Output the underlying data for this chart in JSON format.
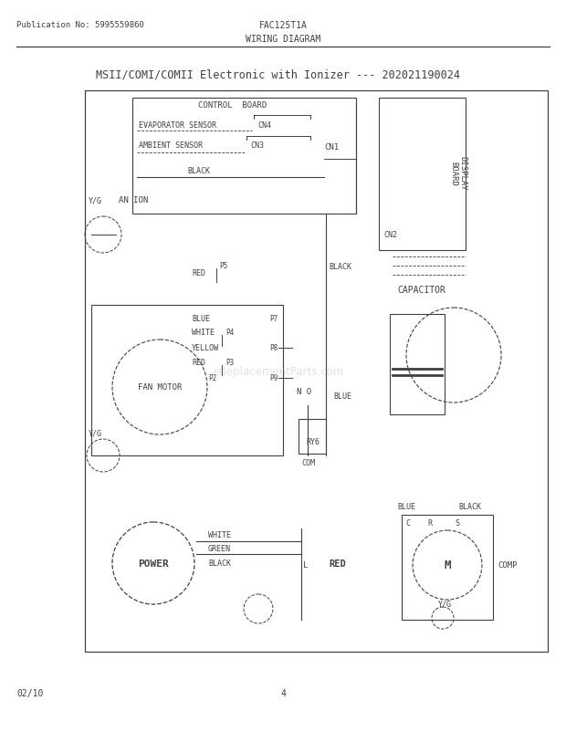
{
  "title": "MSII/COMI/COMII Electronic with Ionizer --- 202021190024",
  "header_left": "Publication No: 5995559860",
  "header_center": "FAC125T1A",
  "header_sub": "WIRING DIAGRAM",
  "footer_left": "02/10",
  "footer_center": "4",
  "watermark": "eReplacementParts.com",
  "bg_color": "#ffffff",
  "line_color": "#404040",
  "text_color": "#404040"
}
